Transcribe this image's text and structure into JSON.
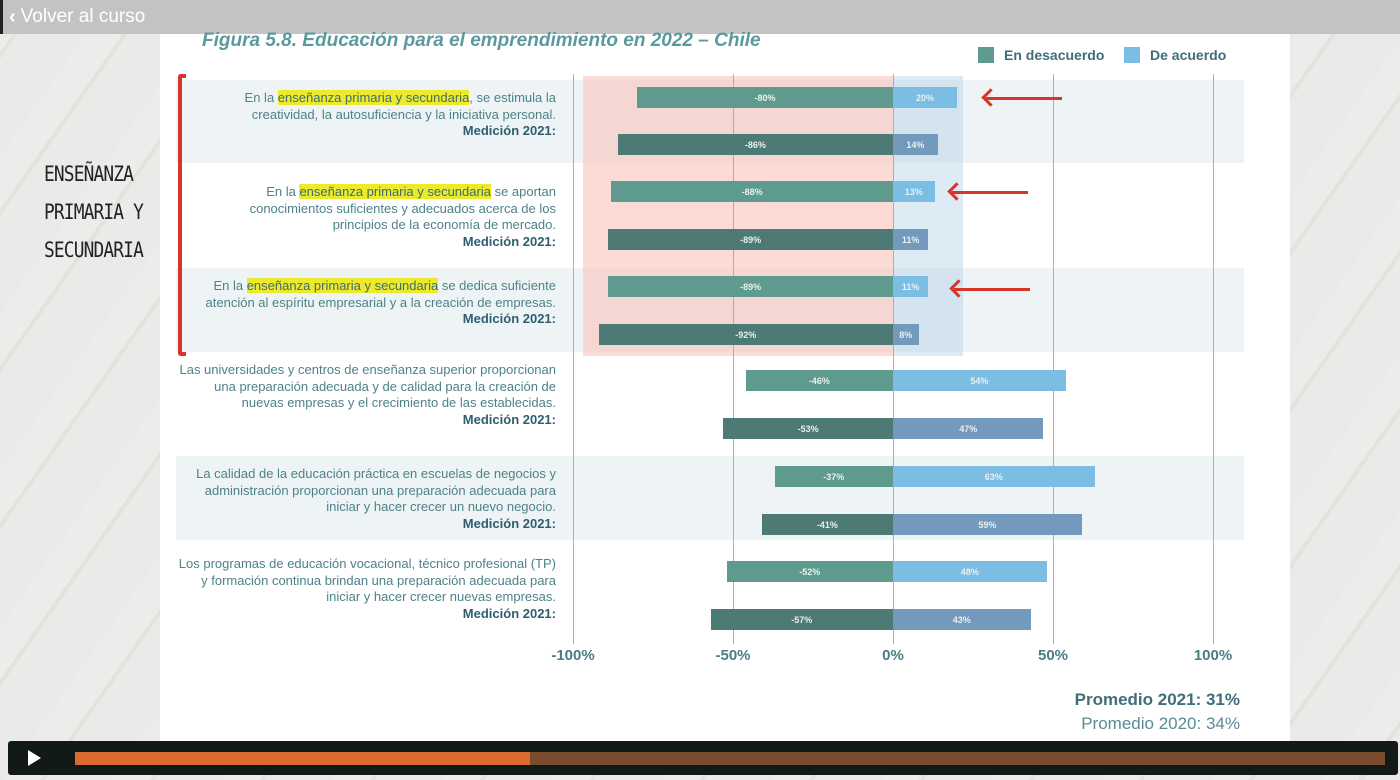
{
  "topbar": {
    "back_label": "Volver al curso"
  },
  "handwritten_label": [
    "ENSEÑANZA",
    "PRIMARIA Y",
    "SECUNDARIA"
  ],
  "player": {
    "progress": 0.347
  },
  "chart_data": {
    "type": "bar",
    "title": "Figura 5.8. Educación para el emprendimiento en 2022 – Chile",
    "legend": [
      {
        "name": "En desacuerdo",
        "color": "#5f9a8f"
      },
      {
        "name": "De acuerdo",
        "color": "#7cbde3"
      }
    ],
    "legend_position": "top-right",
    "xlim": [
      -100,
      100
    ],
    "xticks": [
      "-100%",
      "-50%",
      "0%",
      "50%",
      "100%"
    ],
    "xtick_values": [
      -100,
      -50,
      0,
      50,
      100
    ],
    "measure_label": "Medición 2021:",
    "items": [
      {
        "pre": "En la ",
        "hl": "enseñanza primaria y secundaria",
        "post": ", se estimula la creatividad, la autosuficiencia y la iniciativa personal.",
        "y2022": [
          -80,
          20
        ],
        "y2021": [
          -86,
          14
        ]
      },
      {
        "pre": "En la ",
        "hl": "enseñanza primaria y secundaria",
        "post": " se aportan conocimientos suficientes y adecuados acerca de los principios de la economía de mercado.",
        "y2022": [
          -88,
          13
        ],
        "y2021": [
          -89,
          11
        ]
      },
      {
        "pre": "En la ",
        "hl": "enseñanza primaria y secundaria",
        "post": " se dedica suficiente atención al espíritu empresarial y a la creación de empresas.",
        "y2022": [
          -89,
          11
        ],
        "y2021": [
          -92,
          8
        ]
      },
      {
        "pre": "",
        "hl": "",
        "post": "Las universidades y centros de enseñanza superior proporcionan una preparación adecuada y de calidad para la creación de nuevas empresas y el crecimiento de las establecidas.",
        "y2022": [
          -46,
          54
        ],
        "y2021": [
          -53,
          47
        ]
      },
      {
        "pre": "",
        "hl": "",
        "post": "La calidad de la educación práctica en escuelas de negocios y administración proporcionan una preparación adecuada para iniciar y hacer crecer un nuevo negocio.",
        "y2022": [
          -37,
          63
        ],
        "y2021": [
          -41,
          59
        ]
      },
      {
        "pre": "",
        "hl": "",
        "post": "Los programas de educación vocacional, técnico profesional (TP) y formación continua brindan una preparación adecuada para iniciar y hacer crecer nuevas empresas.",
        "y2022": [
          -52,
          48
        ],
        "y2021": [
          -57,
          43
        ]
      }
    ],
    "footer": {
      "avg2021": "Promedio 2021: 31%",
      "avg2020": "Promedio 2020: 34%"
    },
    "colors": {
      "neg2022": "#5f9a8f",
      "pos2022": "#7cbde3",
      "neg2021": "#4e7a76",
      "pos2021": "#7399bd"
    }
  }
}
